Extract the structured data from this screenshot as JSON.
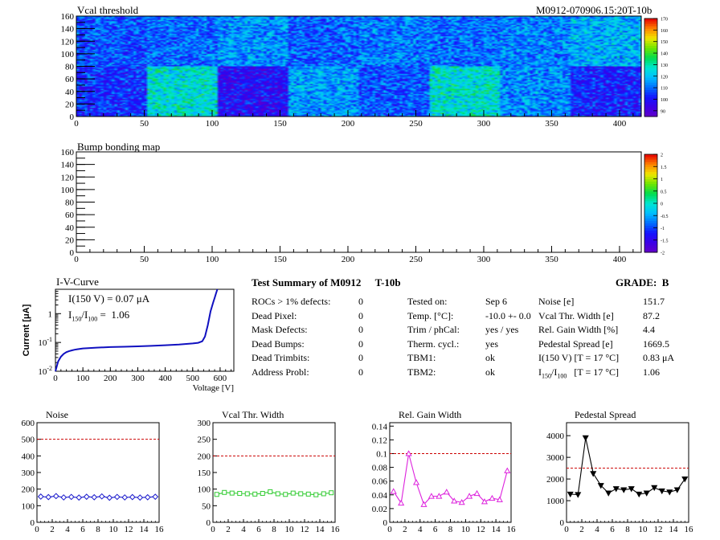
{
  "header": {
    "module_id": "M0912-070906.15:20T-10b"
  },
  "chart_data": [
    {
      "type": "heatmap",
      "title": "Vcal threshold",
      "x_ticks": [
        "0",
        "50",
        "100",
        "150",
        "200",
        "250",
        "300",
        "350",
        "400"
      ],
      "y_ticks": [
        "0",
        "20",
        "40",
        "60",
        "80",
        "100",
        "120",
        "140",
        "160"
      ],
      "xlim": [
        0,
        416
      ],
      "ylim": [
        0,
        160
      ],
      "colorbar_ticks": [
        "90",
        "100",
        "110",
        "120",
        "130",
        "140",
        "150",
        "160",
        "170"
      ],
      "colorbar_range": [
        85,
        170
      ],
      "roc_levels": [
        [
          108,
          110,
          115,
          109,
          112,
          111,
          113,
          118
        ],
        [
          104,
          126,
          98,
          116,
          108,
          126,
          114,
          102
        ]
      ]
    },
    {
      "type": "heatmap",
      "title": "Bump bonding map",
      "x_ticks": [
        "0",
        "50",
        "100",
        "150",
        "200",
        "250",
        "300",
        "350",
        "400"
      ],
      "y_ticks": [
        "0",
        "20",
        "40",
        "60",
        "80",
        "100",
        "120",
        "140",
        "160"
      ],
      "xlim": [
        0,
        416
      ],
      "ylim": [
        0,
        160
      ],
      "colorbar_ticks": [
        "-2",
        "-1.5",
        "-1",
        "-0.5",
        "0",
        "0.5",
        "1",
        "1.5",
        "2"
      ],
      "colorbar_range": [
        -2,
        2
      ]
    },
    {
      "type": "line",
      "title": "I-V-Curve",
      "ylabel": "Current [μA]",
      "xlabel": "Voltage [V]",
      "x_ticks": [
        "0",
        "100",
        "200",
        "300",
        "400",
        "500",
        "600"
      ],
      "xlim": [
        0,
        650
      ],
      "y_scale": "log",
      "ylim": [
        0.01,
        7
      ],
      "y_ticks": [
        {
          "base": "10",
          "exp": "-2",
          "value": 0.01
        },
        {
          "base": "10",
          "exp": "-1",
          "value": 0.1
        },
        {
          "base": "1",
          "exp": "",
          "value": 1
        }
      ],
      "annotation_i150": "I(150 V) = 0.07 μA",
      "annotation_ratio_value": "1.06",
      "x": [
        0,
        5,
        10,
        20,
        30,
        40,
        50,
        60,
        70,
        80,
        100,
        150,
        200,
        250,
        300,
        350,
        400,
        450,
        500,
        520,
        535,
        545,
        555,
        565,
        575,
        580,
        585,
        590
      ],
      "y": [
        0.01,
        0.015,
        0.022,
        0.032,
        0.04,
        0.046,
        0.05,
        0.053,
        0.056,
        0.058,
        0.062,
        0.066,
        0.069,
        0.071,
        0.073,
        0.076,
        0.08,
        0.085,
        0.092,
        0.097,
        0.11,
        0.16,
        0.4,
        1.2,
        2.5,
        3.5,
        5,
        7
      ]
    },
    {
      "type": "line",
      "title": "Noise",
      "x_ticks": [
        "0",
        "2",
        "4",
        "6",
        "8",
        "10",
        "12",
        "14",
        "16"
      ],
      "y_ticks": [
        "0",
        "100",
        "200",
        "300",
        "400",
        "500",
        "600"
      ],
      "xlim": [
        0,
        16
      ],
      "ylim": [
        0,
        600
      ],
      "threshold": 500,
      "color": "#1a1acc",
      "marker": "diamond",
      "x": [
        0.5,
        1.5,
        2.5,
        3.5,
        4.5,
        5.5,
        6.5,
        7.5,
        8.5,
        9.5,
        10.5,
        11.5,
        12.5,
        13.5,
        14.5,
        15.5
      ],
      "y": [
        155,
        152,
        158,
        150,
        153,
        149,
        154,
        151,
        156,
        148,
        153,
        150,
        152,
        149,
        151,
        154
      ]
    },
    {
      "type": "line",
      "title": "Vcal Thr. Width",
      "x_ticks": [
        "0",
        "2",
        "4",
        "6",
        "8",
        "10",
        "12",
        "14",
        "16"
      ],
      "y_ticks": [
        "0",
        "50",
        "100",
        "150",
        "200",
        "250",
        "300"
      ],
      "xlim": [
        0,
        16
      ],
      "ylim": [
        0,
        300
      ],
      "threshold": 200,
      "color": "#33cc33",
      "marker": "square",
      "x": [
        0.5,
        1.5,
        2.5,
        3.5,
        4.5,
        5.5,
        6.5,
        7.5,
        8.5,
        9.5,
        10.5,
        11.5,
        12.5,
        13.5,
        14.5,
        15.5
      ],
      "y": [
        84,
        90,
        88,
        87,
        86,
        85,
        87,
        92,
        86,
        84,
        88,
        86,
        85,
        83,
        86,
        89
      ]
    },
    {
      "type": "line",
      "title": "Rel. Gain Width",
      "x_ticks": [
        "0",
        "2",
        "4",
        "6",
        "8",
        "10",
        "12",
        "14",
        "16"
      ],
      "y_ticks": [
        "0",
        "0.02",
        "0.04",
        "0.06",
        "0.08",
        "0.1",
        "0.12",
        "0.14"
      ],
      "xlim": [
        0,
        16
      ],
      "ylim": [
        0,
        0.145
      ],
      "threshold": 0.1,
      "color": "#dd22dd",
      "marker": "triangle",
      "x": [
        0.5,
        1.5,
        2.5,
        3.5,
        4.5,
        5.5,
        6.5,
        7.5,
        8.5,
        9.5,
        10.5,
        11.5,
        12.5,
        13.5,
        14.5,
        15.5
      ],
      "y": [
        0.045,
        0.028,
        0.1,
        0.058,
        0.026,
        0.038,
        0.038,
        0.044,
        0.031,
        0.029,
        0.038,
        0.042,
        0.03,
        0.035,
        0.033,
        0.075
      ]
    },
    {
      "type": "line",
      "title": "Pedestal Spread",
      "x_ticks": [
        "0",
        "2",
        "4",
        "6",
        "8",
        "10",
        "12",
        "14",
        "16"
      ],
      "y_ticks": [
        "0",
        "1000",
        "2000",
        "3000",
        "4000"
      ],
      "xlim": [
        0,
        16
      ],
      "ylim": [
        0,
        4600
      ],
      "threshold": 2500,
      "color": "#000000",
      "marker": "triangle-down",
      "x": [
        0.5,
        1.5,
        2.5,
        3.5,
        4.5,
        5.5,
        6.5,
        7.5,
        8.5,
        9.5,
        10.5,
        11.5,
        12.5,
        13.5,
        14.5,
        15.5
      ],
      "y": [
        1300,
        1280,
        3900,
        2250,
        1700,
        1350,
        1550,
        1500,
        1550,
        1300,
        1350,
        1600,
        1450,
        1400,
        1500,
        2000
      ]
    }
  ],
  "summary": {
    "title": "Test Summary of M0912",
    "tag": "T-10b",
    "grade": "GRADE:  B",
    "defects": [
      {
        "label": "ROCs > 1% defects:",
        "value": "0"
      },
      {
        "label": "Dead Pixel:",
        "value": "0"
      },
      {
        "label": "Mask Defects:",
        "value": "0"
      },
      {
        "label": "Dead Bumps:",
        "value": "0"
      },
      {
        "label": "Dead Trimbits:",
        "value": "0"
      },
      {
        "label": "Address Probl:",
        "value": "0"
      }
    ],
    "conditions": [
      {
        "label": "Tested on:",
        "value": "Sep 6"
      },
      {
        "label": "Temp. [°C]:",
        "value": "-10.0 +- 0.0"
      },
      {
        "label": "Trim / phCal:",
        "value": "yes / yes"
      },
      {
        "label": "Therm. cycl.:",
        "value": "yes"
      },
      {
        "label": "TBM1:",
        "value": "ok"
      },
      {
        "label": "TBM2:",
        "value": "ok"
      }
    ],
    "results": [
      {
        "label": "Noise [e]",
        "value": "151.7"
      },
      {
        "label": "Vcal Thr. Width [e]",
        "value": "87.2"
      },
      {
        "label": "Rel. Gain Width [%]",
        "value": "4.4"
      },
      {
        "label": "Pedestal Spread [e]",
        "value": "1669.5"
      },
      {
        "label": "I(150 V) [T = 17 °C]",
        "value": "0.83 μA"
      },
      {
        "label": "[T = 17 °C]",
        "value": "1.06"
      }
    ]
  }
}
